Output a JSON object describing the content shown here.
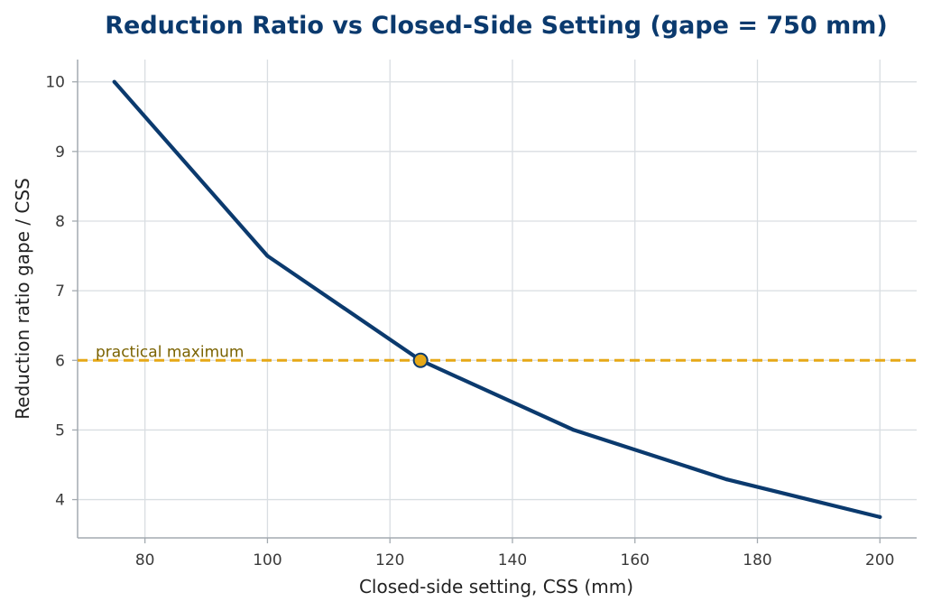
{
  "chart_data": {
    "type": "line",
    "title": "Reduction Ratio vs Closed-Side Setting (gape = 750 mm)",
    "xlabel": "Closed-side setting, CSS (mm)",
    "ylabel": "Reduction ratio  gape / CSS",
    "xlim": [
      69,
      206
    ],
    "ylim": [
      3.45,
      10.32
    ],
    "xticks": [
      80,
      100,
      120,
      140,
      160,
      180,
      200
    ],
    "yticks": [
      4,
      5,
      6,
      7,
      8,
      9,
      10
    ],
    "grid": true,
    "series": [
      {
        "x": [
          75,
          100,
          125,
          150,
          175,
          200
        ],
        "y": [
          10,
          7.5,
          6,
          5,
          4.29,
          3.75
        ],
        "color": "#0b3a6e"
      }
    ],
    "reference_line": {
      "y": 6,
      "label": "practical maximum",
      "color": "#e6a817",
      "label_color": "#7a6200"
    },
    "highlight_point": {
      "x": 125,
      "y": 6,
      "fill": "#e6a817",
      "stroke": "#0b3a6e"
    }
  }
}
